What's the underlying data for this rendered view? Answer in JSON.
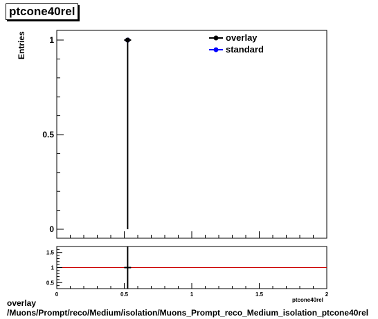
{
  "chart_data": [
    {
      "type": "scatter",
      "panel": "main",
      "title": "ptcone40rel",
      "ylabel": "Entries",
      "xlim": [
        0,
        2
      ],
      "ylim": [
        0,
        1
      ],
      "yticks": [
        {
          "value": 0,
          "label": "0"
        },
        {
          "value": 0.5,
          "label": "0.5"
        },
        {
          "value": 1,
          "label": "1"
        }
      ],
      "series": [
        {
          "name": "overlay",
          "color": "#000000",
          "marker": "circle",
          "x": [
            0.525
          ],
          "y": [
            1
          ]
        },
        {
          "name": "standard",
          "color": "#0000ff",
          "marker": "circle",
          "x": [
            0.525
          ],
          "y": [
            1
          ]
        }
      ],
      "legend": "top-right"
    },
    {
      "type": "scatter",
      "panel": "ratio",
      "xlabel": "ptcone40rel",
      "xlim": [
        0,
        2
      ],
      "ylim": [
        0.3,
        1.7
      ],
      "xticks": [
        {
          "value": 0,
          "label": "0"
        },
        {
          "value": 0.5,
          "label": "0.5"
        },
        {
          "value": 1,
          "label": "1"
        },
        {
          "value": 1.5,
          "label": "1.5"
        },
        {
          "value": 2,
          "label": "2"
        }
      ],
      "yticks": [
        {
          "value": 0.5,
          "label": "0.5"
        },
        {
          "value": 1,
          "label": "1"
        },
        {
          "value": 1.5,
          "label": "1.5"
        }
      ],
      "reference_line": {
        "y": 1,
        "color": "#cc0000"
      },
      "series": [
        {
          "color": "#000000",
          "x": [
            0.525
          ],
          "y": [
            1
          ]
        }
      ]
    }
  ],
  "footer": {
    "line1": "overlay",
    "line2": "/Muons/Prompt/reco/Medium/isolation/Muons_Prompt_reco_Medium_isolation_ptcone40rel"
  }
}
